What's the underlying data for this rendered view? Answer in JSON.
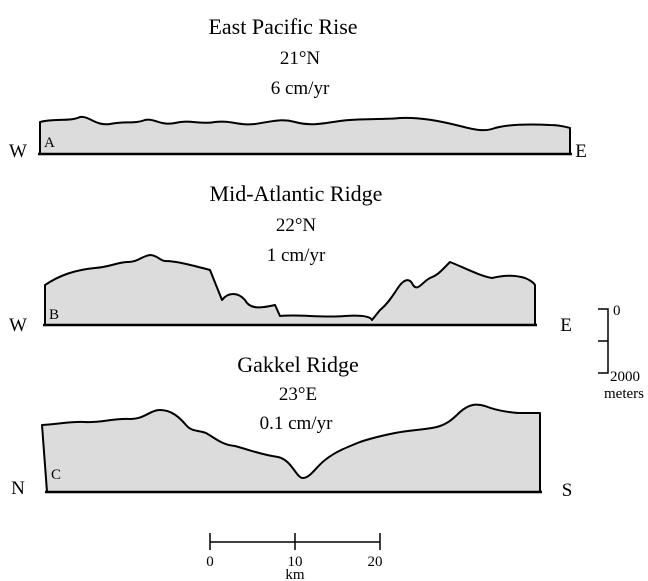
{
  "profiles": [
    {
      "name": "East Pacific Rise",
      "location": "21°N",
      "rate": "6 cm/yr",
      "left": "W",
      "label": "A",
      "right": "E"
    },
    {
      "name": "Mid-Atlantic Ridge",
      "location": "22°N",
      "rate": "1 cm/yr",
      "left": "W",
      "label": "B",
      "right": "E"
    },
    {
      "name": "Gakkel Ridge",
      "location": "23°E",
      "rate": "0.1 cm/yr",
      "left": "N",
      "label": "C",
      "right": "S"
    }
  ],
  "vertical_scale": {
    "top": "0",
    "bottom": "2000",
    "unit": "meters"
  },
  "horizontal_scale": {
    "ticks": [
      "0",
      "10",
      "20"
    ],
    "unit": "km"
  }
}
